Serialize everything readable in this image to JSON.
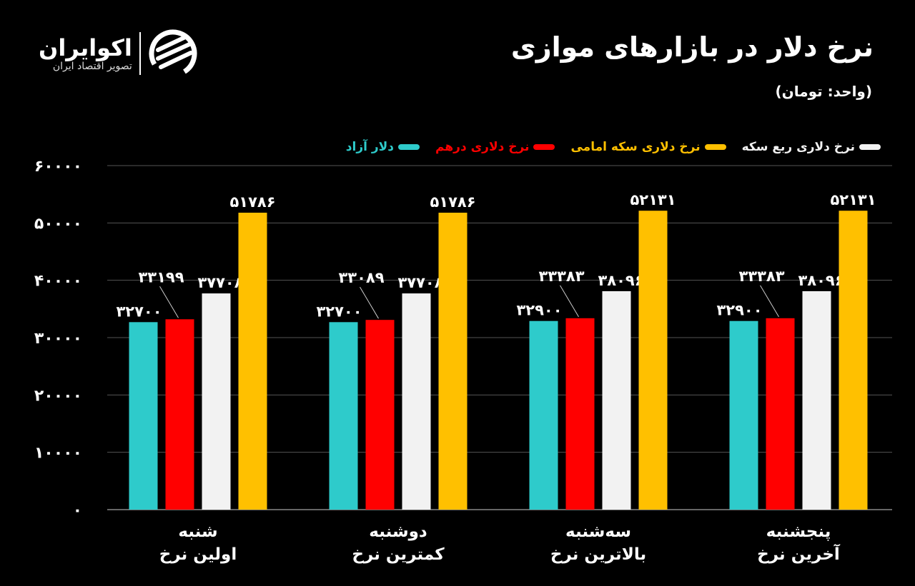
{
  "header": {
    "title": "نرخ دلار در بازارهای موازی",
    "subtitle": "(واحد: تومان)"
  },
  "logo": {
    "name": "اکوایران",
    "tagline": "تصویر اقتصاد ایران"
  },
  "chart_data": {
    "type": "bar",
    "title": "نرخ دلار در بازارهای موازی",
    "subtitle": "(واحد: تومان)",
    "categories": [
      [
        "شنبه",
        "اولین نرخ"
      ],
      [
        "دوشنبه",
        "کمترین نرخ"
      ],
      [
        "سه‌شنبه",
        "بالاترین نرخ"
      ],
      [
        "پنجشنبه",
        "آخرین نرخ"
      ]
    ],
    "series": [
      {
        "name": "دلار آزاد",
        "color": "#2ECBCB",
        "values": [
          32700,
          32700,
          32900,
          32900
        ]
      },
      {
        "name": "نرخ دلاری درهم",
        "color": "#FF0000",
        "values": [
          33199,
          33089,
          33383,
          33383
        ]
      },
      {
        "name": "نرخ دلاری ربع سکه",
        "color": "#F2F2F2",
        "values": [
          37708,
          37708,
          38096,
          38096
        ]
      },
      {
        "name": "نرخ دلاری سکه امامی",
        "color": "#FFC000",
        "values": [
          51786,
          51786,
          52131,
          52131
        ]
      }
    ],
    "legend_order": [
      0,
      1,
      3,
      2
    ],
    "legend_placement": "top-right",
    "ylim": [
      0,
      60000
    ],
    "yticks": [
      0,
      10000,
      20000,
      30000,
      40000,
      50000,
      60000
    ],
    "grid": true,
    "digits": "persian"
  }
}
